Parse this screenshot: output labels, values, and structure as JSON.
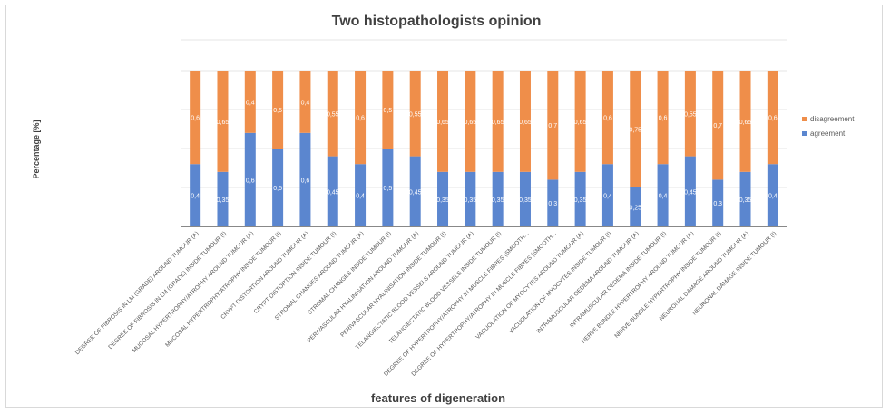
{
  "colors": {
    "agreement": "#5b86cf",
    "disagreement": "#ef8e4a",
    "grid": "#e6e6e6",
    "axis": "#404040"
  },
  "chart_data": {
    "type": "bar",
    "stacked": true,
    "title": "Two histopathologists opinion",
    "xlabel": "features of digeneration",
    "ylabel": "Percentage [%]",
    "ylim": [
      0,
      1
    ],
    "grid": true,
    "legend_position": "right",
    "categories": [
      "DEGREE OF FIBROSIS IN LM (GRADE) AROUND TUMOUR (A)",
      "DEGREE OF FIBROSIS IN LM (GRADE) INSIDE TUMOUR (I)",
      "MUCOSAL HYPERTROPHY/ATROPHY AROUND TUMOUR (A)",
      "MUCOSAL HYPERTROPHY/ATROPHY INSIDE TUMOUR (I)",
      "CRYPT DISTORTION AROUND TUMOUR (A)",
      "CRYPT DISTORTION INSIDE TUMOUR (I)",
      "STROMAL CHANGES AROUND TUMOUR (A)",
      "STROMAL CHANGES INSIDE TUMOUR (I)",
      "PERIVASCULAR HYALINISATION AROUND TUMOUR (A)",
      "PERIVASCULAR HYALINISATION INSIDE TUMOUR (I)",
      "TELANGIECTATIC BLOOD VESSELS AROUND TUMOUR (A)",
      "TELANGIECTATIC BLOOD VESSELS INSIDE TUMOUR (I)",
      "DEGREE OF HYPERTROPHY/ATROPHY IN MUSCLE FIBRES (SMOOTH...",
      "DEGREE OF HYPERTROPHY/ATROPHY IN MUSCLE FIBRES (SMOOTH...",
      "VACUOLATION OF MYOCYTES AROUND TUMOUR (A)",
      "VACUOLATION OF MYOCYTES INSIDE TUMOUR (I)",
      "INTRAMUSCULAR OEDEMA AROUND TUMOUR (A)",
      "INTRAMUSCULAR OEDEMA INSIDE TUMOUR (I)",
      "NERVE BUNDLE HYPERTROPHY AROUND TUMOUR (A)",
      "NERVE BUNDLE HYPERTROPHY INSIDE TUMOUR (I)",
      "NEURONAL DAMAGE AROUND TUMOUR (A)",
      "NEURONAL DAMAGE INSIDE TUMOUR (I)"
    ],
    "series": [
      {
        "name": "agreement",
        "values": [
          0.4,
          0.35,
          0.6,
          0.5,
          0.6,
          0.45,
          0.4,
          0.5,
          0.45,
          0.35,
          0.35,
          0.35,
          0.35,
          0.3,
          0.35,
          0.4,
          0.25,
          0.4,
          0.45,
          0.3,
          0.35,
          0.4
        ],
        "labels": [
          "0,4",
          "0,35",
          "0,6",
          "0,5",
          "0,6",
          "0,45",
          "0,4",
          "0,5",
          "0,45",
          "0,35",
          "0,35",
          "0,35",
          "0,35",
          "0,3",
          "0,35",
          "0,4",
          "0,25",
          "0,4",
          "0,45",
          "0,3",
          "0,35",
          "0,4"
        ]
      },
      {
        "name": "disagreement",
        "values": [
          0.6,
          0.65,
          0.4,
          0.5,
          0.4,
          0.55,
          0.6,
          0.5,
          0.55,
          0.65,
          0.65,
          0.65,
          0.65,
          0.7,
          0.65,
          0.6,
          0.75,
          0.6,
          0.55,
          0.7,
          0.65,
          0.6
        ],
        "labels": [
          "0,6",
          "0,65",
          "0,4",
          "0,5",
          "0,4",
          "0,55",
          "0,6",
          "0,5",
          "0,55",
          "0,65",
          "0,65",
          "0,65",
          "0,65",
          "0,7",
          "0,65",
          "0,6",
          "0,75",
          "0,6",
          "0,55",
          "0,7",
          "0,65",
          "0,6"
        ]
      }
    ]
  }
}
